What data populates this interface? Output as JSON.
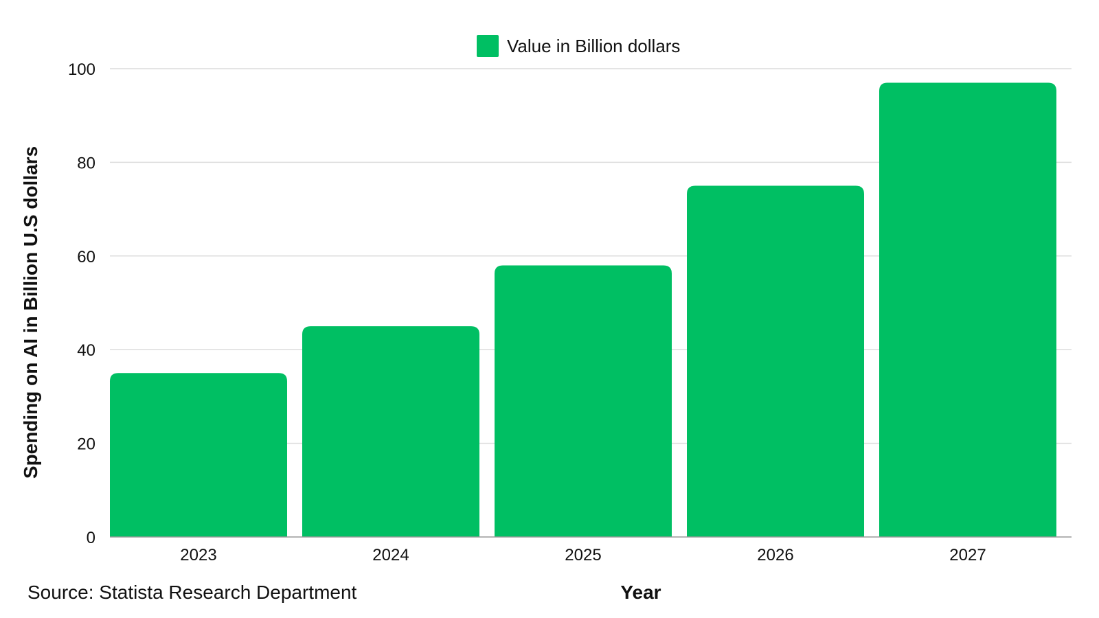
{
  "chart_data": {
    "type": "bar",
    "categories": [
      "2023",
      "2024",
      "2025",
      "2026",
      "2027"
    ],
    "series": [
      {
        "name": "Value in Billion dollars",
        "values": [
          35,
          45,
          58,
          75,
          97
        ],
        "color": "#00bf63"
      }
    ],
    "xlabel": "Year",
    "ylabel": "Spending on AI in Billion U.S dollars",
    "ylim": [
      0,
      100
    ],
    "yticks": [
      0,
      20,
      40,
      60,
      80,
      100
    ],
    "grid": true,
    "legend_position": "top-center"
  },
  "source": "Source: Statista Research Department"
}
